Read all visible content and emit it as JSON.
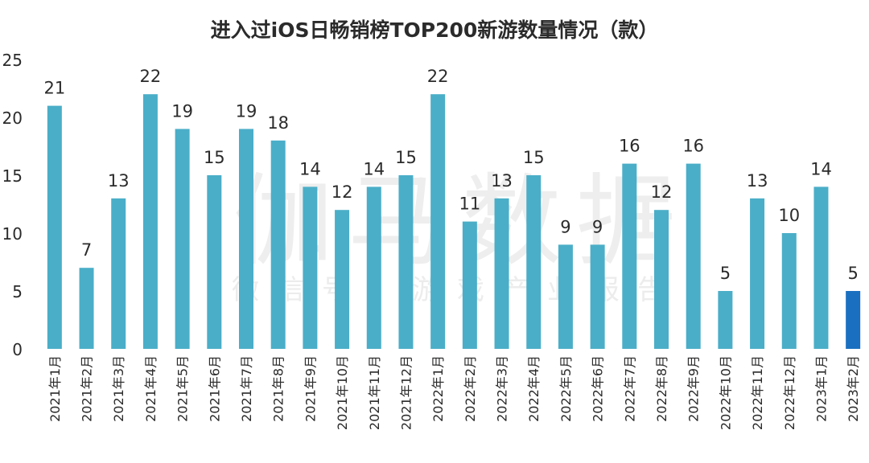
{
  "watermark": {
    "main": "伽马数据",
    "sub": "微信号：游戏产业报告"
  },
  "chart_data": {
    "type": "bar",
    "title": "进入过iOS日畅销榜TOP200新游数量情况（款）",
    "xlabel": "",
    "ylabel": "",
    "ylim": [
      0,
      25
    ],
    "yticks": [
      0,
      5,
      10,
      15,
      20,
      25
    ],
    "grid": false,
    "colors": {
      "default": "#4aaec8",
      "highlight": "#1a6fc0"
    },
    "highlight_category": "2023年2月",
    "categories": [
      "2021年1月",
      "2021年2月",
      "2021年3月",
      "2021年4月",
      "2021年5月",
      "2021年6月",
      "2021年7月",
      "2021年8月",
      "2021年9月",
      "2021年10月",
      "2021年11月",
      "2021年12月",
      "2022年1月",
      "2022年2月",
      "2022年3月",
      "2022年4月",
      "2022年5月",
      "2022年6月",
      "2022年7月",
      "2022年8月",
      "2022年9月",
      "2022年10月",
      "2022年11月",
      "2022年12月",
      "2023年1月",
      "2023年2月"
    ],
    "values": [
      21,
      7,
      13,
      22,
      19,
      15,
      19,
      18,
      14,
      12,
      14,
      15,
      22,
      11,
      13,
      15,
      9,
      9,
      16,
      12,
      16,
      5,
      13,
      10,
      14,
      5
    ]
  }
}
